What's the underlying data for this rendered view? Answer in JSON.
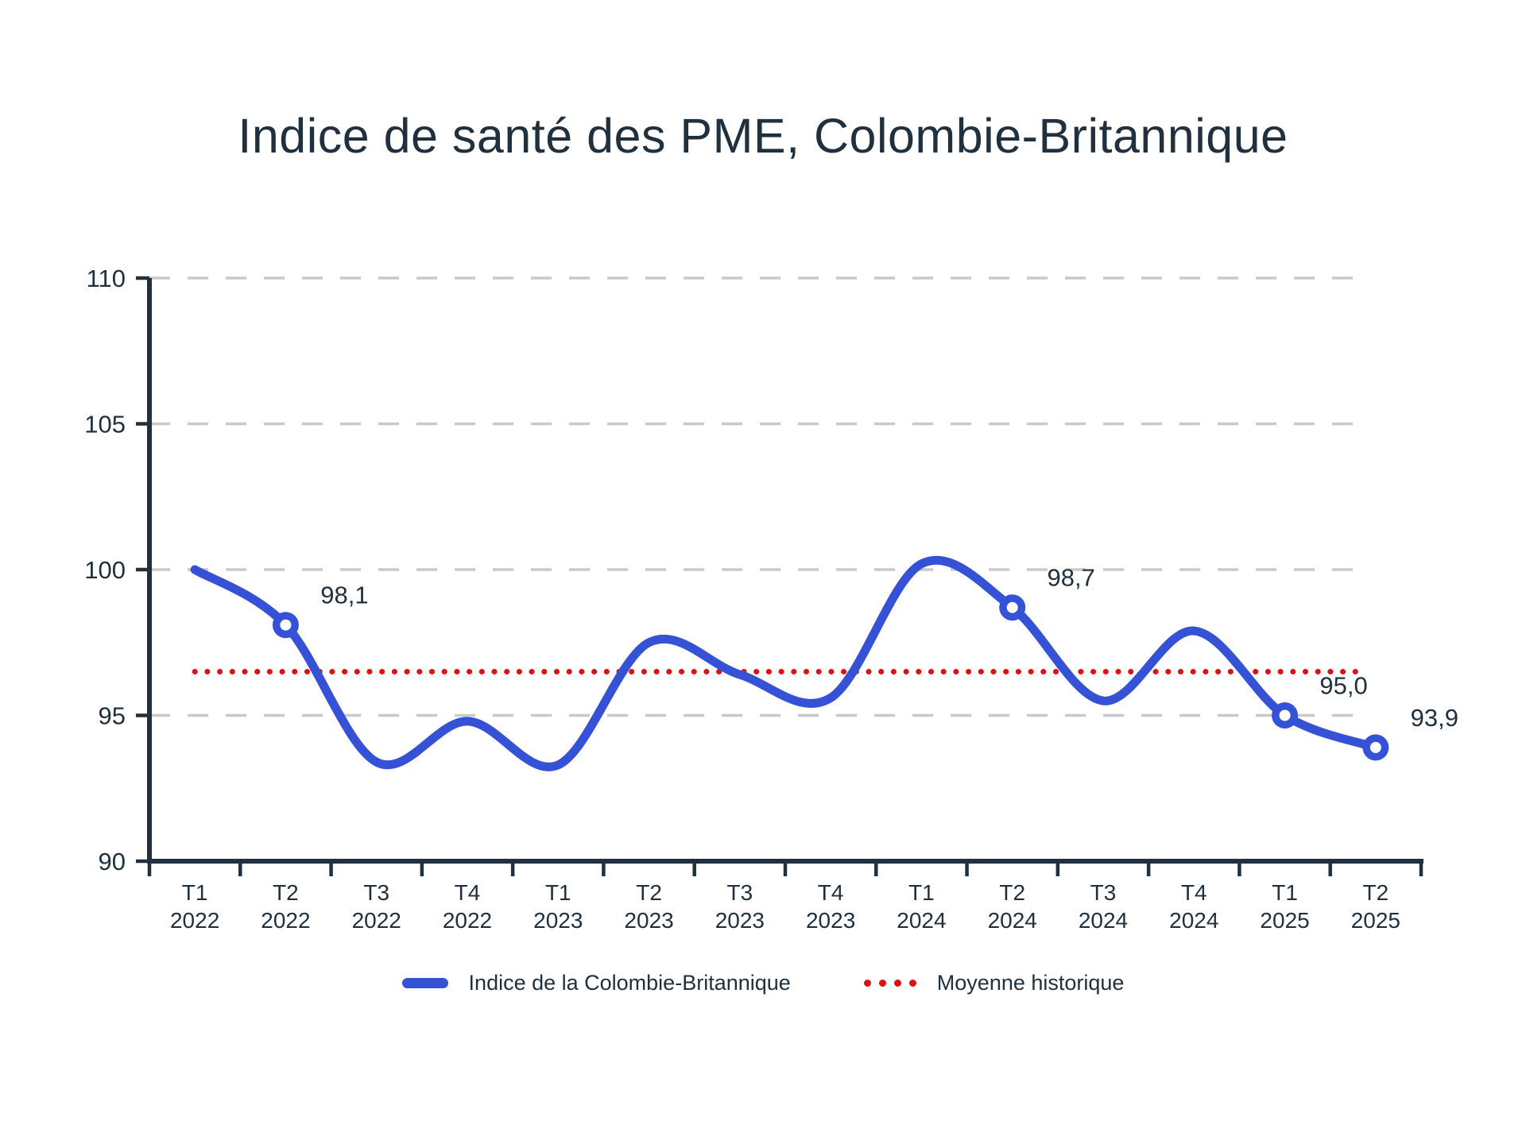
{
  "title": "Indice de santé des PME, Colombie-Britannique",
  "legend": {
    "index_label": "Indice de la Colombie-Britannique",
    "average_label": "Moyenne historique",
    "position": "bottom"
  },
  "chart_data": {
    "type": "line",
    "categories": [
      [
        "T1",
        "2022"
      ],
      [
        "T2",
        "2022"
      ],
      [
        "T3",
        "2022"
      ],
      [
        "T4",
        "2022"
      ],
      [
        "T1",
        "2023"
      ],
      [
        "T2",
        "2023"
      ],
      [
        "T3",
        "2023"
      ],
      [
        "T4",
        "2023"
      ],
      [
        "T1",
        "2024"
      ],
      [
        "T2",
        "2024"
      ],
      [
        "T3",
        "2024"
      ],
      [
        "T4",
        "2024"
      ],
      [
        "T1",
        "2025"
      ],
      [
        "T2",
        "2025"
      ]
    ],
    "series": [
      {
        "name": "Indice de la Colombie-Britannique",
        "type": "smooth-line",
        "values": [
          100.0,
          98.1,
          93.4,
          94.8,
          93.3,
          97.5,
          96.4,
          95.6,
          100.2,
          98.7,
          95.5,
          97.9,
          95.0,
          93.9
        ],
        "color": "#3551d6"
      },
      {
        "name": "Moyenne historique",
        "type": "horizontal-dotted-line",
        "value": 96.5,
        "color": "#e11010"
      }
    ],
    "labeled_points": [
      {
        "index": 1,
        "label": "98,1"
      },
      {
        "index": 9,
        "label": "98,7"
      },
      {
        "index": 12,
        "label": "95,0"
      },
      {
        "index": 13,
        "label": "93,9"
      }
    ],
    "ylim": [
      90,
      110
    ],
    "yticks": [
      110,
      105,
      100,
      95,
      90
    ],
    "grid": "horizontal-dashed",
    "colors": {
      "line": "#3551d6",
      "average": "#e11010",
      "axis": "#20303f",
      "gridline": "#c9c9c9",
      "marker_fill": "#ffffff"
    }
  }
}
